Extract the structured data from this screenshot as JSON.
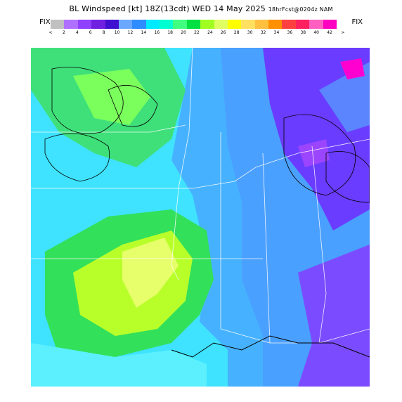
{
  "header": {
    "title_main": "BL Windspeed [kt] 18Z(13cdt) WED 14 May 2025",
    "title_sub": "18hrFcst@0204z NAM"
  },
  "legend": {
    "fix_left": "FIX",
    "fix_right": "FIX",
    "colors": [
      "#c0c0c0",
      "#b070ff",
      "#9040ff",
      "#7020e0",
      "#4010d0",
      "#6aa8ff",
      "#2d8cff",
      "#00eaff",
      "#00ffd0",
      "#40ff80",
      "#00e040",
      "#a0ff20",
      "#e0ff60",
      "#ffff00",
      "#ffe060",
      "#ffc040",
      "#ff9000",
      "#ff4040",
      "#ff2060",
      "#ff60c0",
      "#ff00c0"
    ],
    "ticks": [
      "<",
      "2",
      "4",
      "6",
      "8",
      "10",
      "12",
      "14",
      "16",
      "18",
      "20",
      "22",
      "24",
      "26",
      "28",
      "30",
      "32",
      "34",
      "36",
      "38",
      "40",
      "42",
      ">"
    ]
  },
  "map": {
    "legend_ref": "legend.colors"
  }
}
